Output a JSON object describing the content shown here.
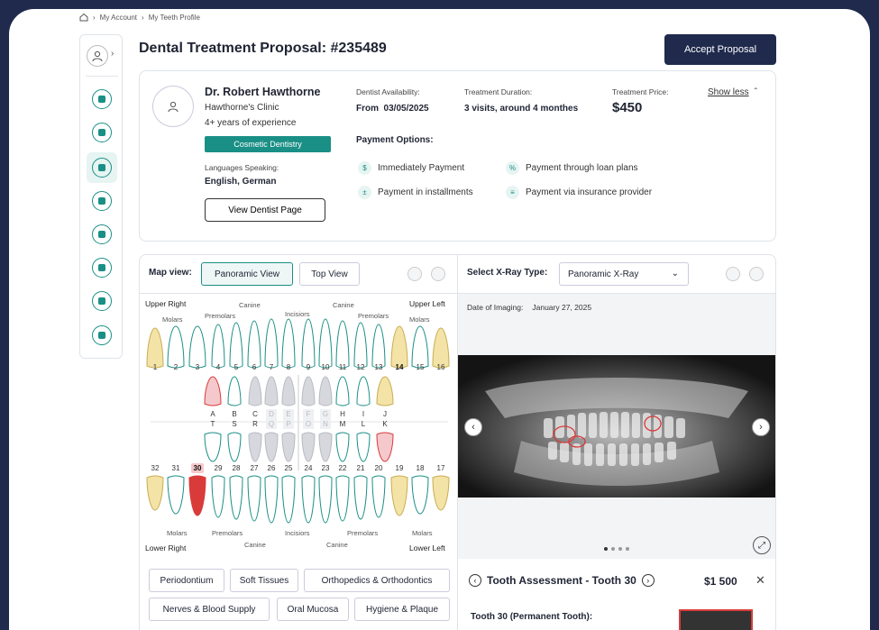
{
  "breadcrumb": {
    "items": [
      "My Account",
      "My Teeth Profile"
    ]
  },
  "page": {
    "title": "Dental Treatment Proposal: #235489",
    "accept_label": "Accept Proposal"
  },
  "dentist": {
    "name": "Dr. Robert Hawthorne",
    "clinic": "Hawthorne's Clinic",
    "experience": "4+ years of experience",
    "specialty": "Cosmetic Dentistry",
    "languages_label": "Languages Speaking:",
    "languages": "English, German",
    "view_label": "View Dentist Page"
  },
  "details": {
    "availability_label": "Dentist Availability:",
    "availability": "From  03/05/2025",
    "duration_label": "Treatment Duration:",
    "duration": "3 visits, around 4 monthes",
    "price_label": "Treatment Price:",
    "price": "$450",
    "toggle_label": "Show less"
  },
  "payment": {
    "title": "Payment Options:",
    "options": [
      "Immediately Payment",
      "Payment through loan plans",
      "Payment in installments",
      "Payment via insurance provider"
    ]
  },
  "map": {
    "label": "Map view:",
    "views": [
      "Panoramic View",
      "Top View"
    ],
    "quadrants": [
      "Upper Right",
      "Upper Left",
      "Lower Right",
      "Lower Left"
    ],
    "groups_upper": [
      "Molars",
      "Premolars",
      "Canine",
      "Incisiors",
      "Canine",
      "Premolars",
      "Molars"
    ],
    "groups_lower": [
      "Molars",
      "Premolars",
      "Canine",
      "Incisiors",
      "Canine",
      "Premolars",
      "Molars"
    ],
    "upper_perm": [
      "1",
      "2",
      "3",
      "4",
      "5",
      "6",
      "7",
      "8",
      "9",
      "10",
      "11",
      "12",
      "13",
      "14",
      "15",
      "16"
    ],
    "upper_prim": [
      "A",
      "B",
      "C",
      "D",
      "E",
      "F",
      "G",
      "H",
      "I",
      "J"
    ],
    "lower_prim": [
      "T",
      "S",
      "R",
      "Q",
      "P",
      "O",
      "N",
      "M",
      "L",
      "K"
    ],
    "lower_perm": [
      "32",
      "31",
      "30",
      "29",
      "28",
      "27",
      "26",
      "25",
      "24",
      "23",
      "22",
      "21",
      "20",
      "19",
      "18",
      "17"
    ],
    "highlight_tooth": "30"
  },
  "categories": [
    "Periodontium",
    "Soft Tissues",
    "Orthopedics & Orthodontics",
    "Nerves & Blood Supply",
    "Oral Mucosa",
    "Hygiene & Plaque"
  ],
  "xray": {
    "label": "Select X-Ray Type:",
    "type": "Panoramic X-Ray",
    "date_label": "Date of Imaging:",
    "date": "January 27, 2025"
  },
  "assessment": {
    "title": "Tooth Assessment - Tooth 30",
    "price": "$1 500",
    "subtitle": "Tooth 30 (Permanent Tooth):"
  },
  "colors": {
    "accent": "#1a8f86",
    "navy": "#1f2a4d",
    "tooth_yellow": "#f3e3a6",
    "tooth_red": "#d93b3b"
  }
}
